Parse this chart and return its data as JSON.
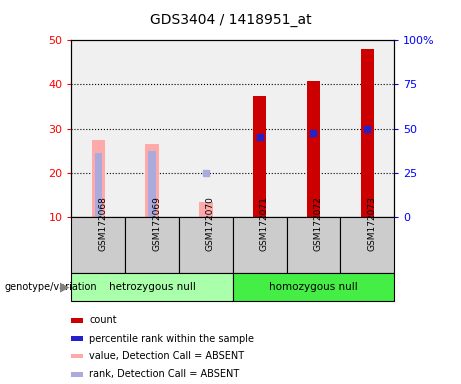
{
  "title": "GDS3404 / 1418951_at",
  "samples": [
    "GSM172068",
    "GSM172069",
    "GSM172070",
    "GSM172071",
    "GSM172072",
    "GSM172073"
  ],
  "ylim_left": [
    10,
    50
  ],
  "ylim_right": [
    0,
    100
  ],
  "yticks_left": [
    10,
    20,
    30,
    40,
    50
  ],
  "yticks_right": [
    0,
    25,
    50,
    75,
    100
  ],
  "yticklabels_right": [
    "0",
    "25",
    "50",
    "75",
    "100%"
  ],
  "count_values": [
    null,
    null,
    null,
    37.5,
    40.8,
    48.0
  ],
  "rank_values_left": [
    null,
    null,
    null,
    28.0,
    29.0,
    30.0
  ],
  "absent_value_values": [
    27.5,
    26.5,
    13.5,
    null,
    null,
    null
  ],
  "absent_rank_values": [
    null,
    null,
    20.0,
    null,
    null,
    null
  ],
  "absent_rank_top_values": [
    24.5,
    25.0,
    null,
    null,
    null,
    null
  ],
  "count_color": "#cc0000",
  "rank_color": "#2222cc",
  "absent_value_color": "#ffaaaa",
  "absent_rank_color": "#aaaadd",
  "hetero_color": "#aaffaa",
  "homo_color": "#44ee44",
  "legend_items": [
    {
      "label": "count",
      "color": "#cc0000",
      "marker": "s"
    },
    {
      "label": "percentile rank within the sample",
      "color": "#2222cc",
      "marker": "s"
    },
    {
      "label": "value, Detection Call = ABSENT",
      "color": "#ffaaaa",
      "marker": "s"
    },
    {
      "label": "rank, Detection Call = ABSENT",
      "color": "#aaaadd",
      "marker": "s"
    }
  ]
}
